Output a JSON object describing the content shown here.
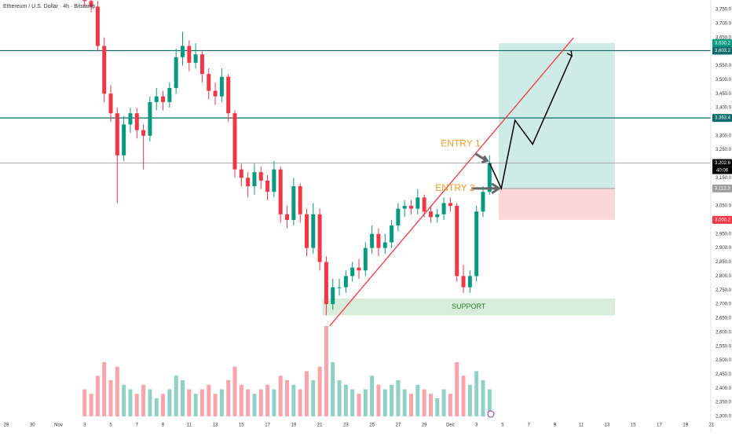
{
  "chart_data": {
    "type": "candlestick",
    "title": "Ethereum / U.S. Dollar · 4h · Bitstamp",
    "x": [
      6,
      6.5,
      7,
      7.5,
      8,
      8.5,
      9,
      9.5,
      10,
      10.5,
      11,
      11.5,
      12,
      12.5,
      13,
      13.5,
      14,
      14.5,
      15,
      15.5,
      16,
      16.5,
      17,
      17.5,
      18,
      18.5,
      19,
      19.5,
      20,
      20.5,
      21,
      21.5,
      22,
      22.5,
      23,
      23.5,
      24,
      24.5,
      25,
      25.5,
      26,
      26.5,
      27,
      27.5,
      28,
      28.5,
      29,
      29.5,
      30,
      30.5,
      31,
      31.5,
      32,
      32.5,
      33,
      33.5,
      34,
      34.5,
      35,
      35.5,
      36,
      36.5,
      37
    ],
    "open": [
      3800,
      3780,
      3760,
      3620,
      3450,
      3380,
      3230,
      3340,
      3380,
      3320,
      3300,
      3420,
      3440,
      3420,
      3470,
      3580,
      3620,
      3560,
      3590,
      3520,
      3460,
      3440,
      3510,
      3380,
      3180,
      3150,
      3120,
      3170,
      3140,
      3100,
      3180,
      3020,
      3000,
      3120,
      3020,
      2900,
      3020,
      2850,
      2700,
      2760,
      2760,
      2800,
      2830,
      2820,
      2900,
      2950,
      2900,
      2920,
      2980,
      3040,
      3050,
      3040,
      3080,
      3030,
      3010,
      3020,
      3060,
      3050,
      2800,
      2760,
      2800,
      3030,
      3100
    ],
    "high": [
      3830,
      3800,
      3780,
      3650,
      3480,
      3400,
      3370,
      3400,
      3400,
      3340,
      3440,
      3470,
      3460,
      3490,
      3610,
      3670,
      3640,
      3630,
      3600,
      3540,
      3490,
      3540,
      3520,
      3390,
      3200,
      3170,
      3200,
      3190,
      3160,
      3210,
      3190,
      3050,
      3150,
      3130,
      3040,
      3060,
      3040,
      2870,
      2790,
      2790,
      2820,
      2850,
      2860,
      2920,
      2980,
      2970,
      2950,
      3000,
      3060,
      3070,
      3070,
      3110,
      3090,
      3050,
      3040,
      3080,
      3080,
      3060,
      2840,
      2820,
      3050,
      3120,
      3230
    ],
    "low": [
      3760,
      3740,
      3600,
      3420,
      3350,
      3060,
      3210,
      3310,
      3290,
      3180,
      3280,
      3390,
      3390,
      3400,
      3450,
      3550,
      3530,
      3540,
      3490,
      3430,
      3410,
      3420,
      3350,
      3150,
      3120,
      3080,
      3090,
      3110,
      3070,
      3080,
      2990,
      2970,
      2980,
      2990,
      2870,
      2880,
      2820,
      2660,
      2680,
      2730,
      2740,
      2780,
      2790,
      2800,
      2880,
      2870,
      2880,
      2900,
      2960,
      3010,
      3020,
      3020,
      3010,
      2990,
      2990,
      3000,
      3030,
      2780,
      2740,
      2740,
      2780,
      3010,
      3090
    ],
    "close": [
      3780,
      3760,
      3620,
      3450,
      3380,
      3230,
      3340,
      3380,
      3320,
      3300,
      3420,
      3440,
      3420,
      3470,
      3580,
      3620,
      3560,
      3590,
      3520,
      3460,
      3440,
      3510,
      3380,
      3180,
      3150,
      3120,
      3170,
      3140,
      3100,
      3180,
      3020,
      3000,
      3120,
      3020,
      2900,
      3020,
      2850,
      2700,
      2760,
      2760,
      2800,
      2830,
      2820,
      2900,
      2950,
      2900,
      2920,
      2980,
      3040,
      3050,
      3040,
      3080,
      3030,
      3010,
      3020,
      3060,
      3050,
      2800,
      2760,
      2800,
      3030,
      3100,
      3202.6
    ],
    "volume": [
      30,
      25,
      45,
      60,
      40,
      55,
      35,
      30,
      25,
      35,
      30,
      20,
      25,
      30,
      45,
      40,
      30,
      25,
      30,
      35,
      25,
      30,
      40,
      55,
      35,
      30,
      25,
      30,
      35,
      30,
      45,
      40,
      35,
      30,
      50,
      40,
      55,
      100,
      60,
      40,
      35,
      30,
      25,
      30,
      45,
      35,
      30,
      35,
      40,
      30,
      25,
      35,
      30,
      25,
      20,
      30,
      25,
      60,
      45,
      35,
      50,
      40,
      30
    ],
    "up_color": "#089981",
    "down_color": "#f23645",
    "xlim": [
      -0.48,
      53.94
    ],
    "ylim": [
      2300,
      3783.6
    ],
    "xticks": [
      {
        "value": 0,
        "label": "28"
      },
      {
        "value": 2,
        "label": "30"
      },
      {
        "value": 4,
        "label": "Nov"
      },
      {
        "value": 6,
        "label": "3"
      },
      {
        "value": 8,
        "label": "5"
      },
      {
        "value": 10,
        "label": "7"
      },
      {
        "value": 12,
        "label": "9"
      },
      {
        "value": 14,
        "label": "11"
      },
      {
        "value": 16,
        "label": "13"
      },
      {
        "value": 18,
        "label": "15"
      },
      {
        "value": 20,
        "label": "17"
      },
      {
        "value": 22,
        "label": "19"
      },
      {
        "value": 24,
        "label": "21"
      },
      {
        "value": 26,
        "label": "23"
      },
      {
        "value": 28,
        "label": "25"
      },
      {
        "value": 30,
        "label": "27"
      },
      {
        "value": 32,
        "label": "29"
      },
      {
        "value": 34,
        "label": "Dec"
      },
      {
        "value": 36,
        "label": "3"
      },
      {
        "value": 38,
        "label": "5"
      },
      {
        "value": 40,
        "label": "7"
      },
      {
        "value": 42,
        "label": "9"
      },
      {
        "value": 44,
        "label": "11"
      },
      {
        "value": 46,
        "label": "13"
      },
      {
        "value": 48,
        "label": "15"
      },
      {
        "value": 50,
        "label": "17"
      },
      {
        "value": 52,
        "label": "19"
      },
      {
        "value": 54,
        "label": "21"
      }
    ],
    "yticks": [
      {
        "value": 3750,
        "label": "3,750.0"
      },
      {
        "value": 3700,
        "label": "3,700.0"
      },
      {
        "value": 3650,
        "label": "3,650.0"
      },
      {
        "value": 3550,
        "label": "3,550.0"
      },
      {
        "value": 3500,
        "label": "3,500.0"
      },
      {
        "value": 3450,
        "label": "3,450.0"
      },
      {
        "value": 3400,
        "label": "3,400.0"
      },
      {
        "value": 3300,
        "label": "3,300.0"
      },
      {
        "value": 3250,
        "label": "3,250.0"
      },
      {
        "value": 3150,
        "label": "3,150.0"
      },
      {
        "value": 3050,
        "label": "3,050.0"
      },
      {
        "value": 2950,
        "label": "2,950.0"
      },
      {
        "value": 2900,
        "label": "2,900.0"
      },
      {
        "value": 2850,
        "label": "2,850.0"
      },
      {
        "value": 2800,
        "label": "2,800.0"
      },
      {
        "value": 2750,
        "label": "2,750.0"
      },
      {
        "value": 2700,
        "label": "2,700.0"
      },
      {
        "value": 2650,
        "label": "2,650.0"
      },
      {
        "value": 2600,
        "label": "2,600.0"
      },
      {
        "value": 2550,
        "label": "2,550.0"
      },
      {
        "value": 2500,
        "label": "2,500.0"
      },
      {
        "value": 2450,
        "label": "2,450.0"
      },
      {
        "value": 2400,
        "label": "2,400.0"
      },
      {
        "value": 2350,
        "label": "2,350.0"
      },
      {
        "value": 2300,
        "label": "2,300.0"
      }
    ],
    "price_tags": [
      {
        "value": 3630.2,
        "label": "3,630.2",
        "color": "#089981"
      },
      {
        "value": 3603.2,
        "label": "3,603.2",
        "color": "#0e6b6b"
      },
      {
        "value": 3363.4,
        "label": "3,363.4",
        "color": "#0e6b6b"
      },
      {
        "value": 3202.6,
        "label": "3,202.6",
        "color": "#000000"
      },
      {
        "value": 3112.3,
        "label": "3,112.3",
        "color": "#9e9e9e"
      },
      {
        "value": 3000.2,
        "label": "3,000.2",
        "color": "#f23645"
      }
    ],
    "countdown": "40:06",
    "levels": [
      {
        "value": 3603.2,
        "color": "#0e6b6b"
      },
      {
        "value": 3363.4,
        "color": "#0e6b6b"
      },
      {
        "value": 3202.6,
        "color": "#9e9e9e"
      }
    ],
    "position": {
      "x": [
        37.7,
        46.6
      ],
      "target": 3630.2,
      "entry": 3112.3,
      "stop": 3000.2
    },
    "support": {
      "label": "SUPPORT",
      "x": [
        24.2,
        46.6
      ],
      "low": 2660,
      "high": 2720
    },
    "trendline": {
      "x": [
        24.76,
        43.43
      ],
      "y": [
        2622,
        3649
      ]
    },
    "projection": {
      "x": [
        37,
        37.9,
        38.95,
        40.3,
        43.3
      ],
      "y": [
        3202.6,
        3112.3,
        3355,
        3270,
        3585
      ]
    },
    "annotations": [
      "ENTRY 1",
      "ENTRY 2"
    ]
  }
}
